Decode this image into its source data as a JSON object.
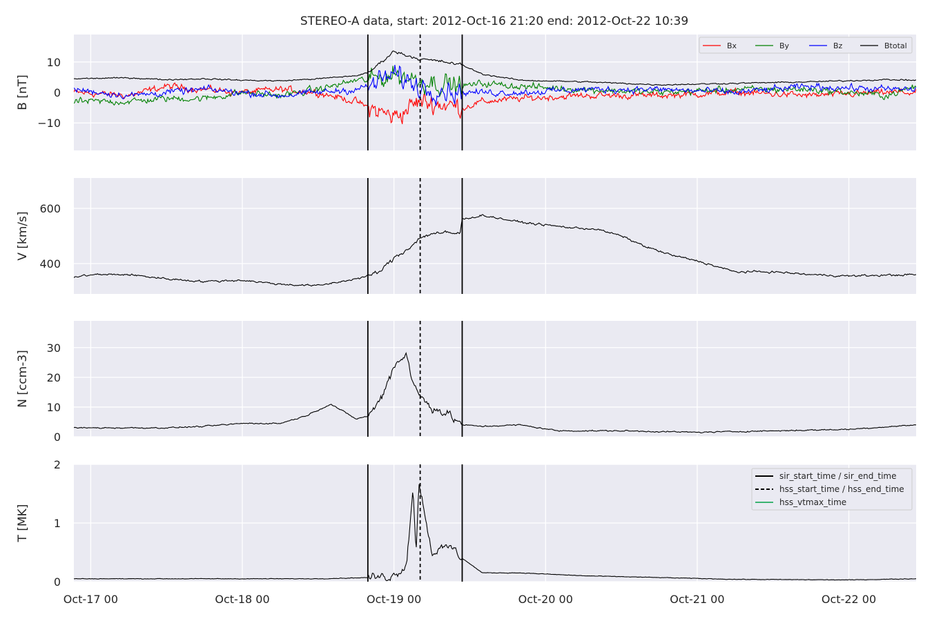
{
  "chart_data": {
    "type": "line",
    "title": "STEREO-A data, start: 2012-Oct-16 21:20  end: 2012-Oct-22 10:39",
    "x_range": [
      "2012-10-16T21:20",
      "2012-10-22T10:39"
    ],
    "x_tick_labels": [
      "Oct-17 00",
      "Oct-18 00",
      "Oct-19 00",
      "Oct-20 00",
      "Oct-21 00",
      "Oct-22 00"
    ],
    "x_tick_times": [
      "2012-10-17T00:00",
      "2012-10-18T00:00",
      "2012-10-19T00:00",
      "2012-10-20T00:00",
      "2012-10-21T00:00",
      "2012-10-22T00:00"
    ],
    "grid": true,
    "colors": {
      "background": "#eaeaf2",
      "grid": "#ffffff",
      "Bx": "#ff0000",
      "By": "#008000",
      "Bz": "#0000ff",
      "Btotal": "#000000",
      "hss_vtmax": "#3cb371"
    },
    "event_lines": {
      "sir_start_time": "2012-10-18T19:52",
      "sir_end_time": "2012-10-19T10:48",
      "hss_start_time": "2012-10-19T04:09",
      "hss_end_time": "2012-10-19T04:09"
    },
    "panels": [
      {
        "ylabel": "B [nT]",
        "ylim": [
          -19,
          19
        ],
        "yticks": [
          10,
          0,
          -10
        ],
        "ytick_labels": [
          "10",
          "0",
          "−10"
        ],
        "legend": {
          "placement": "top-right",
          "entries": [
            "Bx",
            "By",
            "Bz",
            "Btotal"
          ]
        },
        "series": [
          {
            "name": "Btotal",
            "x": [
              "2012-10-16T21:20",
              "2012-10-17T06:00",
              "2012-10-17T12:00",
              "2012-10-17T18:00",
              "2012-10-18T00:00",
              "2012-10-18T06:00",
              "2012-10-18T12:00",
              "2012-10-18T18:00",
              "2012-10-18T20:00",
              "2012-10-19T00:00",
              "2012-10-19T04:00",
              "2012-10-19T08:00",
              "2012-10-19T10:48",
              "2012-10-19T14:00",
              "2012-10-19T20:00",
              "2012-10-20T06:00",
              "2012-10-20T18:00",
              "2012-10-21T06:00",
              "2012-10-21T18:00",
              "2012-10-22T06:00",
              "2012-10-22T10:39"
            ],
            "y": [
              4.5,
              4.8,
              4.2,
              4.5,
              4.0,
              3.8,
              4.5,
              5.5,
              6.5,
              13.5,
              11.0,
              10.0,
              9.0,
              6.0,
              4.0,
              3.5,
              2.5,
              3.0,
              3.5,
              4.2,
              4.0
            ]
          },
          {
            "name": "Bx",
            "x": [
              "2012-10-16T21:20",
              "2012-10-17T06:00",
              "2012-10-17T12:00",
              "2012-10-17T18:00",
              "2012-10-18T00:00",
              "2012-10-18T06:00",
              "2012-10-18T12:00",
              "2012-10-18T18:00",
              "2012-10-18T20:00",
              "2012-10-19T00:00",
              "2012-10-19T04:00",
              "2012-10-19T08:00",
              "2012-10-19T10:48",
              "2012-10-19T14:00",
              "2012-10-19T20:00",
              "2012-10-20T06:00",
              "2012-10-20T18:00",
              "2012-10-21T06:00",
              "2012-10-21T18:00",
              "2012-10-22T06:00",
              "2012-10-22T10:39"
            ],
            "y": [
              0,
              -1,
              2,
              1,
              0,
              1,
              0,
              -3,
              -5,
              -8,
              -3,
              -4,
              -5,
              -3,
              -2,
              -1,
              -1,
              0,
              -1,
              0,
              0
            ]
          },
          {
            "name": "By",
            "x": [
              "2012-10-16T21:20",
              "2012-10-17T06:00",
              "2012-10-17T12:00",
              "2012-10-17T18:00",
              "2012-10-18T00:00",
              "2012-10-18T06:00",
              "2012-10-18T12:00",
              "2012-10-18T18:00",
              "2012-10-18T20:00",
              "2012-10-19T00:00",
              "2012-10-19T04:00",
              "2012-10-19T08:00",
              "2012-10-19T10:48",
              "2012-10-19T14:00",
              "2012-10-19T20:00",
              "2012-10-20T06:00",
              "2012-10-20T18:00",
              "2012-10-21T06:00",
              "2012-10-21T18:00",
              "2012-10-22T06:00",
              "2012-10-22T10:39"
            ],
            "y": [
              -3,
              -3,
              -2,
              -2,
              0,
              -1,
              1,
              4,
              4,
              6,
              4,
              3,
              2,
              3,
              2,
              1,
              0,
              1,
              1,
              -1,
              2
            ]
          },
          {
            "name": "Bz",
            "x": [
              "2012-10-16T21:20",
              "2012-10-17T06:00",
              "2012-10-17T12:00",
              "2012-10-17T18:00",
              "2012-10-18T00:00",
              "2012-10-18T06:00",
              "2012-10-18T12:00",
              "2012-10-18T18:00",
              "2012-10-18T20:00",
              "2012-10-19T00:00",
              "2012-10-19T04:00",
              "2012-10-19T08:00",
              "2012-10-19T10:48",
              "2012-10-19T14:00",
              "2012-10-19T20:00",
              "2012-10-20T06:00",
              "2012-10-20T18:00",
              "2012-10-21T06:00",
              "2012-10-21T18:00",
              "2012-10-22T06:00",
              "2012-10-22T10:39"
            ],
            "y": [
              1,
              -1,
              0,
              1,
              0,
              -1,
              0,
              1,
              2,
              6,
              2,
              1,
              0,
              0,
              0,
              1,
              1,
              0,
              2,
              1,
              1
            ]
          }
        ]
      },
      {
        "ylabel": "V [km/s]",
        "ylim": [
          290,
          710
        ],
        "yticks": [
          600,
          400
        ],
        "ytick_labels": [
          "600",
          "400"
        ],
        "series": [
          {
            "name": "V",
            "x": [
              "2012-10-16T21:20",
              "2012-10-17T00:00",
              "2012-10-17T06:00",
              "2012-10-17T12:00",
              "2012-10-17T18:00",
              "2012-10-18T00:00",
              "2012-10-18T06:00",
              "2012-10-18T12:00",
              "2012-10-18T18:00",
              "2012-10-18T20:00",
              "2012-10-18T22:00",
              "2012-10-19T00:00",
              "2012-10-19T02:00",
              "2012-10-19T04:00",
              "2012-10-19T06:00",
              "2012-10-19T10:30",
              "2012-10-19T10:48",
              "2012-10-19T14:00",
              "2012-10-19T20:00",
              "2012-10-20T00:00",
              "2012-10-20T04:00",
              "2012-10-20T08:00",
              "2012-10-20T12:00",
              "2012-10-20T16:00",
              "2012-10-20T20:00",
              "2012-10-21T00:00",
              "2012-10-21T06:00",
              "2012-10-21T12:00",
              "2012-10-21T18:00",
              "2012-10-22T00:00",
              "2012-10-22T10:39"
            ],
            "y": [
              350,
              360,
              360,
              345,
              335,
              340,
              325,
              320,
              345,
              355,
              375,
              420,
              450,
              490,
              510,
              510,
              560,
              575,
              550,
              540,
              530,
              525,
              500,
              460,
              430,
              410,
              370,
              370,
              360,
              355,
              360
            ]
          }
        ]
      },
      {
        "ylabel": "N [ccm-3]",
        "ylim": [
          0,
          39
        ],
        "yticks": [
          30,
          20,
          10,
          0
        ],
        "ytick_labels": [
          "30",
          "20",
          "10",
          "0"
        ],
        "series": [
          {
            "name": "N",
            "x": [
              "2012-10-16T21:20",
              "2012-10-17T06:00",
              "2012-10-17T12:00",
              "2012-10-17T18:00",
              "2012-10-18T00:00",
              "2012-10-18T06:00",
              "2012-10-18T10:00",
              "2012-10-18T14:00",
              "2012-10-18T18:00",
              "2012-10-18T20:00",
              "2012-10-18T22:00",
              "2012-10-19T00:00",
              "2012-10-19T02:00",
              "2012-10-19T03:00",
              "2012-10-19T04:00",
              "2012-10-19T06:00",
              "2012-10-19T09:00",
              "2012-10-19T10:48",
              "2012-10-19T14:00",
              "2012-10-19T20:00",
              "2012-10-20T02:00",
              "2012-10-20T12:00",
              "2012-10-21T00:00",
              "2012-10-21T12:00",
              "2012-10-22T00:00",
              "2012-10-22T10:39"
            ],
            "y": [
              3,
              3,
              3,
              3.5,
              4.5,
              4.5,
              7,
              11,
              6,
              7,
              13,
              24,
              28,
              18,
              14,
              10,
              7,
              4,
              3.5,
              4,
              2,
              2,
              1.5,
              2,
              2.5,
              4
            ]
          }
        ]
      },
      {
        "ylabel": "T [MK]",
        "ylim": [
          0,
          2.0
        ],
        "yticks": [
          2,
          1,
          0
        ],
        "ytick_labels": [
          "2",
          "1",
          "0"
        ],
        "legend": {
          "placement": "top-right",
          "entries": [
            "sir_start_time / sir_end_time",
            "hss_start_time / hss_end_time",
            "hss_vtmax_time"
          ]
        },
        "series": [
          {
            "name": "T",
            "x": [
              "2012-10-16T21:20",
              "2012-10-17T12:00",
              "2012-10-18T00:00",
              "2012-10-18T12:00",
              "2012-10-18T20:00",
              "2012-10-19T00:00",
              "2012-10-19T02:00",
              "2012-10-19T03:00",
              "2012-10-19T03:30",
              "2012-10-19T04:00",
              "2012-10-19T06:00",
              "2012-10-19T09:00",
              "2012-10-19T10:48",
              "2012-10-19T14:00",
              "2012-10-19T20:00",
              "2012-10-20T06:00",
              "2012-10-20T18:00",
              "2012-10-21T06:00",
              "2012-10-22T00:00",
              "2012-10-22T10:39"
            ],
            "y": [
              0.05,
              0.05,
              0.05,
              0.05,
              0.07,
              0.1,
              0.3,
              1.6,
              0.5,
              1.7,
              0.5,
              0.6,
              0.4,
              0.15,
              0.15,
              0.1,
              0.07,
              0.04,
              0.03,
              0.05
            ]
          }
        ]
      }
    ]
  }
}
